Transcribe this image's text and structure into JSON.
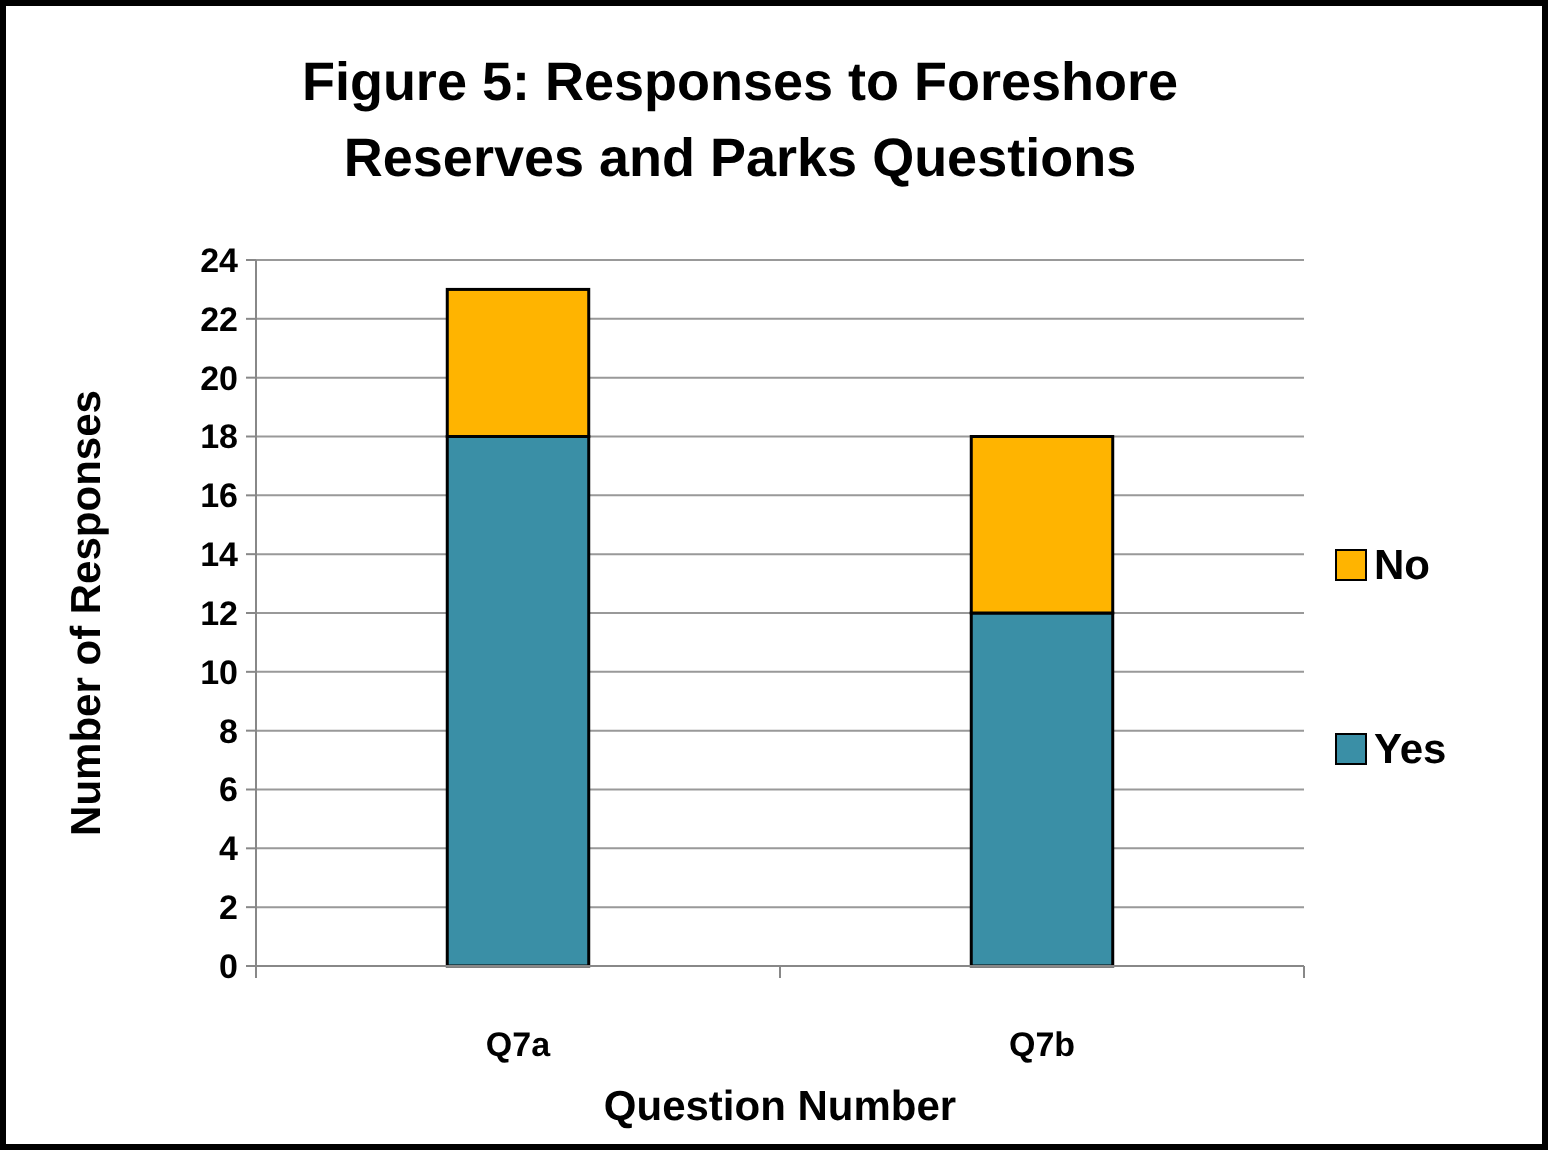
{
  "chart_data": {
    "type": "bar",
    "title": "Figure 5: Responses to Foreshore Reserves and Parks Questions",
    "xlabel": "Question Number",
    "ylabel": "Number of Responses",
    "categories": [
      "Q7a",
      "Q7b"
    ],
    "stacked": true,
    "series": [
      {
        "name": "Yes",
        "color": "#3a8fa6",
        "values": [
          18,
          12
        ]
      },
      {
        "name": "No",
        "color": "#ffb400",
        "values": [
          5,
          6
        ]
      }
    ],
    "ylim": [
      0,
      24
    ],
    "yticks": [
      0,
      2,
      4,
      6,
      8,
      10,
      12,
      14,
      16,
      18,
      20,
      22,
      24
    ],
    "grid": "y",
    "legend": "right"
  }
}
